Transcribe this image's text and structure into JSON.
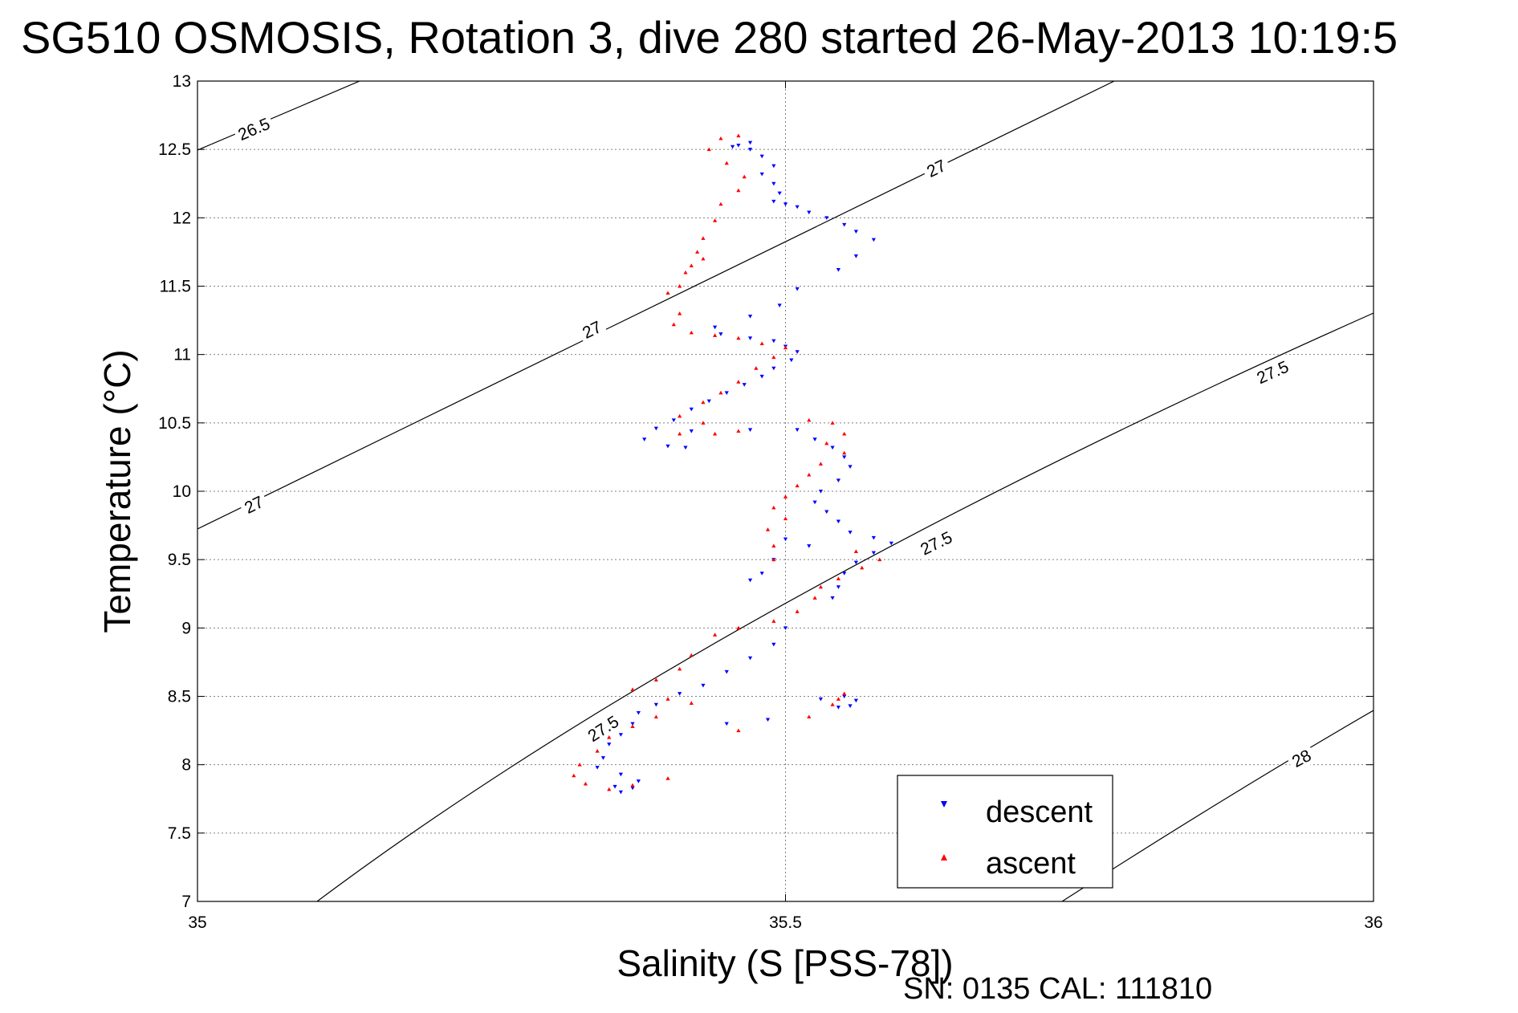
{
  "figure": {
    "title": "SG510 OSMOSIS, Rotation 3, dive 280 started 26-May-2013 10:19:5",
    "footer": "SN: 0135  CAL: 111810"
  },
  "chart_data": {
    "type": "scatter",
    "title": "SG510 OSMOSIS, Rotation 3, dive 280 started 26-May-2013 10:19:5",
    "xlabel": "Salinity (S [PSS-78])",
    "ylabel": "Temperature (°C)",
    "xlim": [
      35,
      36
    ],
    "ylim": [
      7,
      13
    ],
    "x_ticks": [
      35,
      35.5,
      36
    ],
    "x_tick_labels": [
      "35",
      "35.5",
      "36"
    ],
    "y_ticks": [
      7,
      7.5,
      8,
      8.5,
      9,
      9.5,
      10,
      10.5,
      11,
      11.5,
      12,
      12.5,
      13
    ],
    "y_tick_labels": [
      "7",
      "7.5",
      "8",
      "8.5",
      "9",
      "9.5",
      "10",
      "10.5",
      "11",
      "11.5",
      "12",
      "12.5",
      "13"
    ],
    "grid": true,
    "legend_position": "bottom-right",
    "contour_labels": [
      "26.5",
      "27",
      "27.5",
      "28"
    ],
    "series": [
      {
        "name": "descent",
        "color": "#0000ff",
        "marker": "triangle-down",
        "points": [
          [
            35.47,
            12.55
          ],
          [
            35.46,
            12.53
          ],
          [
            35.455,
            12.52
          ],
          [
            35.47,
            12.5
          ],
          [
            35.48,
            12.45
          ],
          [
            35.49,
            12.38
          ],
          [
            35.48,
            12.32
          ],
          [
            35.49,
            12.25
          ],
          [
            35.495,
            12.18
          ],
          [
            35.49,
            12.12
          ],
          [
            35.5,
            12.1
          ],
          [
            35.51,
            12.08
          ],
          [
            35.52,
            12.04
          ],
          [
            35.535,
            12.0
          ],
          [
            35.55,
            11.95
          ],
          [
            35.56,
            11.9
          ],
          [
            35.575,
            11.84
          ],
          [
            35.56,
            11.72
          ],
          [
            35.545,
            11.62
          ],
          [
            35.51,
            11.48
          ],
          [
            35.495,
            11.36
          ],
          [
            35.47,
            11.28
          ],
          [
            35.44,
            11.2
          ],
          [
            35.445,
            11.15
          ],
          [
            35.47,
            11.12
          ],
          [
            35.49,
            11.1
          ],
          [
            35.5,
            11.06
          ],
          [
            35.51,
            11.02
          ],
          [
            35.505,
            10.96
          ],
          [
            35.49,
            10.9
          ],
          [
            35.48,
            10.84
          ],
          [
            35.465,
            10.78
          ],
          [
            35.45,
            10.72
          ],
          [
            35.435,
            10.66
          ],
          [
            35.42,
            10.6
          ],
          [
            35.405,
            10.52
          ],
          [
            35.39,
            10.46
          ],
          [
            35.42,
            10.44
          ],
          [
            35.38,
            10.38
          ],
          [
            35.4,
            10.33
          ],
          [
            35.415,
            10.32
          ],
          [
            35.47,
            10.45
          ],
          [
            35.51,
            10.45
          ],
          [
            35.525,
            10.38
          ],
          [
            35.54,
            10.32
          ],
          [
            35.55,
            10.25
          ],
          [
            35.555,
            10.18
          ],
          [
            35.545,
            10.08
          ],
          [
            35.53,
            10.0
          ],
          [
            35.525,
            9.92
          ],
          [
            35.535,
            9.85
          ],
          [
            35.545,
            9.78
          ],
          [
            35.555,
            9.7
          ],
          [
            35.575,
            9.66
          ],
          [
            35.59,
            9.62
          ],
          [
            35.575,
            9.55
          ],
          [
            35.56,
            9.48
          ],
          [
            35.55,
            9.4
          ],
          [
            35.545,
            9.3
          ],
          [
            35.54,
            9.22
          ],
          [
            35.52,
            9.6
          ],
          [
            35.5,
            9.65
          ],
          [
            35.49,
            9.5
          ],
          [
            35.48,
            9.4
          ],
          [
            35.47,
            9.35
          ],
          [
            35.5,
            9.0
          ],
          [
            35.49,
            8.88
          ],
          [
            35.47,
            8.78
          ],
          [
            35.45,
            8.68
          ],
          [
            35.43,
            8.58
          ],
          [
            35.41,
            8.52
          ],
          [
            35.39,
            8.44
          ],
          [
            35.375,
            8.38
          ],
          [
            35.37,
            8.3
          ],
          [
            35.36,
            8.22
          ],
          [
            35.35,
            8.15
          ],
          [
            35.345,
            8.05
          ],
          [
            35.34,
            7.98
          ],
          [
            35.36,
            7.93
          ],
          [
            35.375,
            7.88
          ],
          [
            35.355,
            7.84
          ],
          [
            35.36,
            7.8
          ],
          [
            35.37,
            7.83
          ],
          [
            35.45,
            8.3
          ],
          [
            35.485,
            8.33
          ],
          [
            35.53,
            8.48
          ],
          [
            35.55,
            8.5
          ],
          [
            35.56,
            8.47
          ],
          [
            35.555,
            8.43
          ],
          [
            35.545,
            8.42
          ]
        ]
      },
      {
        "name": "ascent",
        "color": "#ff0000",
        "marker": "triangle-up",
        "points": [
          [
            35.445,
            12.58
          ],
          [
            35.46,
            12.6
          ],
          [
            35.435,
            12.5
          ],
          [
            35.45,
            12.4
          ],
          [
            35.465,
            12.3
          ],
          [
            35.46,
            12.2
          ],
          [
            35.445,
            12.1
          ],
          [
            35.44,
            11.98
          ],
          [
            35.43,
            11.85
          ],
          [
            35.425,
            11.75
          ],
          [
            35.43,
            11.7
          ],
          [
            35.42,
            11.65
          ],
          [
            35.415,
            11.6
          ],
          [
            35.41,
            11.5
          ],
          [
            35.4,
            11.45
          ],
          [
            35.41,
            11.3
          ],
          [
            35.405,
            11.22
          ],
          [
            35.42,
            11.16
          ],
          [
            35.44,
            11.14
          ],
          [
            35.46,
            11.12
          ],
          [
            35.48,
            11.08
          ],
          [
            35.5,
            11.05
          ],
          [
            35.49,
            10.98
          ],
          [
            35.475,
            10.9
          ],
          [
            35.46,
            10.8
          ],
          [
            35.445,
            10.72
          ],
          [
            35.43,
            10.65
          ],
          [
            35.41,
            10.55
          ],
          [
            35.43,
            10.5
          ],
          [
            35.41,
            10.42
          ],
          [
            35.44,
            10.42
          ],
          [
            35.46,
            10.44
          ],
          [
            35.52,
            10.52
          ],
          [
            35.54,
            10.5
          ],
          [
            35.55,
            10.42
          ],
          [
            35.535,
            10.35
          ],
          [
            35.55,
            10.28
          ],
          [
            35.53,
            10.2
          ],
          [
            35.52,
            10.12
          ],
          [
            35.51,
            10.04
          ],
          [
            35.5,
            9.96
          ],
          [
            35.49,
            9.88
          ],
          [
            35.5,
            9.8
          ],
          [
            35.485,
            9.72
          ],
          [
            35.49,
            9.6
          ],
          [
            35.49,
            9.5
          ],
          [
            35.56,
            9.56
          ],
          [
            35.58,
            9.5
          ],
          [
            35.565,
            9.44
          ],
          [
            35.545,
            9.36
          ],
          [
            35.53,
            9.3
          ],
          [
            35.525,
            9.22
          ],
          [
            35.51,
            9.12
          ],
          [
            35.49,
            9.05
          ],
          [
            35.46,
            9.0
          ],
          [
            35.44,
            8.95
          ],
          [
            35.42,
            8.8
          ],
          [
            35.41,
            8.7
          ],
          [
            35.39,
            8.62
          ],
          [
            35.37,
            8.55
          ],
          [
            35.4,
            8.48
          ],
          [
            35.42,
            8.45
          ],
          [
            35.39,
            8.35
          ],
          [
            35.37,
            8.28
          ],
          [
            35.35,
            8.2
          ],
          [
            35.34,
            8.1
          ],
          [
            35.325,
            8.0
          ],
          [
            35.32,
            7.92
          ],
          [
            35.33,
            7.86
          ],
          [
            35.35,
            7.82
          ],
          [
            35.37,
            7.85
          ],
          [
            35.4,
            7.9
          ],
          [
            35.46,
            8.25
          ],
          [
            35.52,
            8.35
          ],
          [
            35.54,
            8.44
          ],
          [
            35.545,
            8.48
          ],
          [
            35.55,
            8.52
          ]
        ]
      }
    ]
  }
}
